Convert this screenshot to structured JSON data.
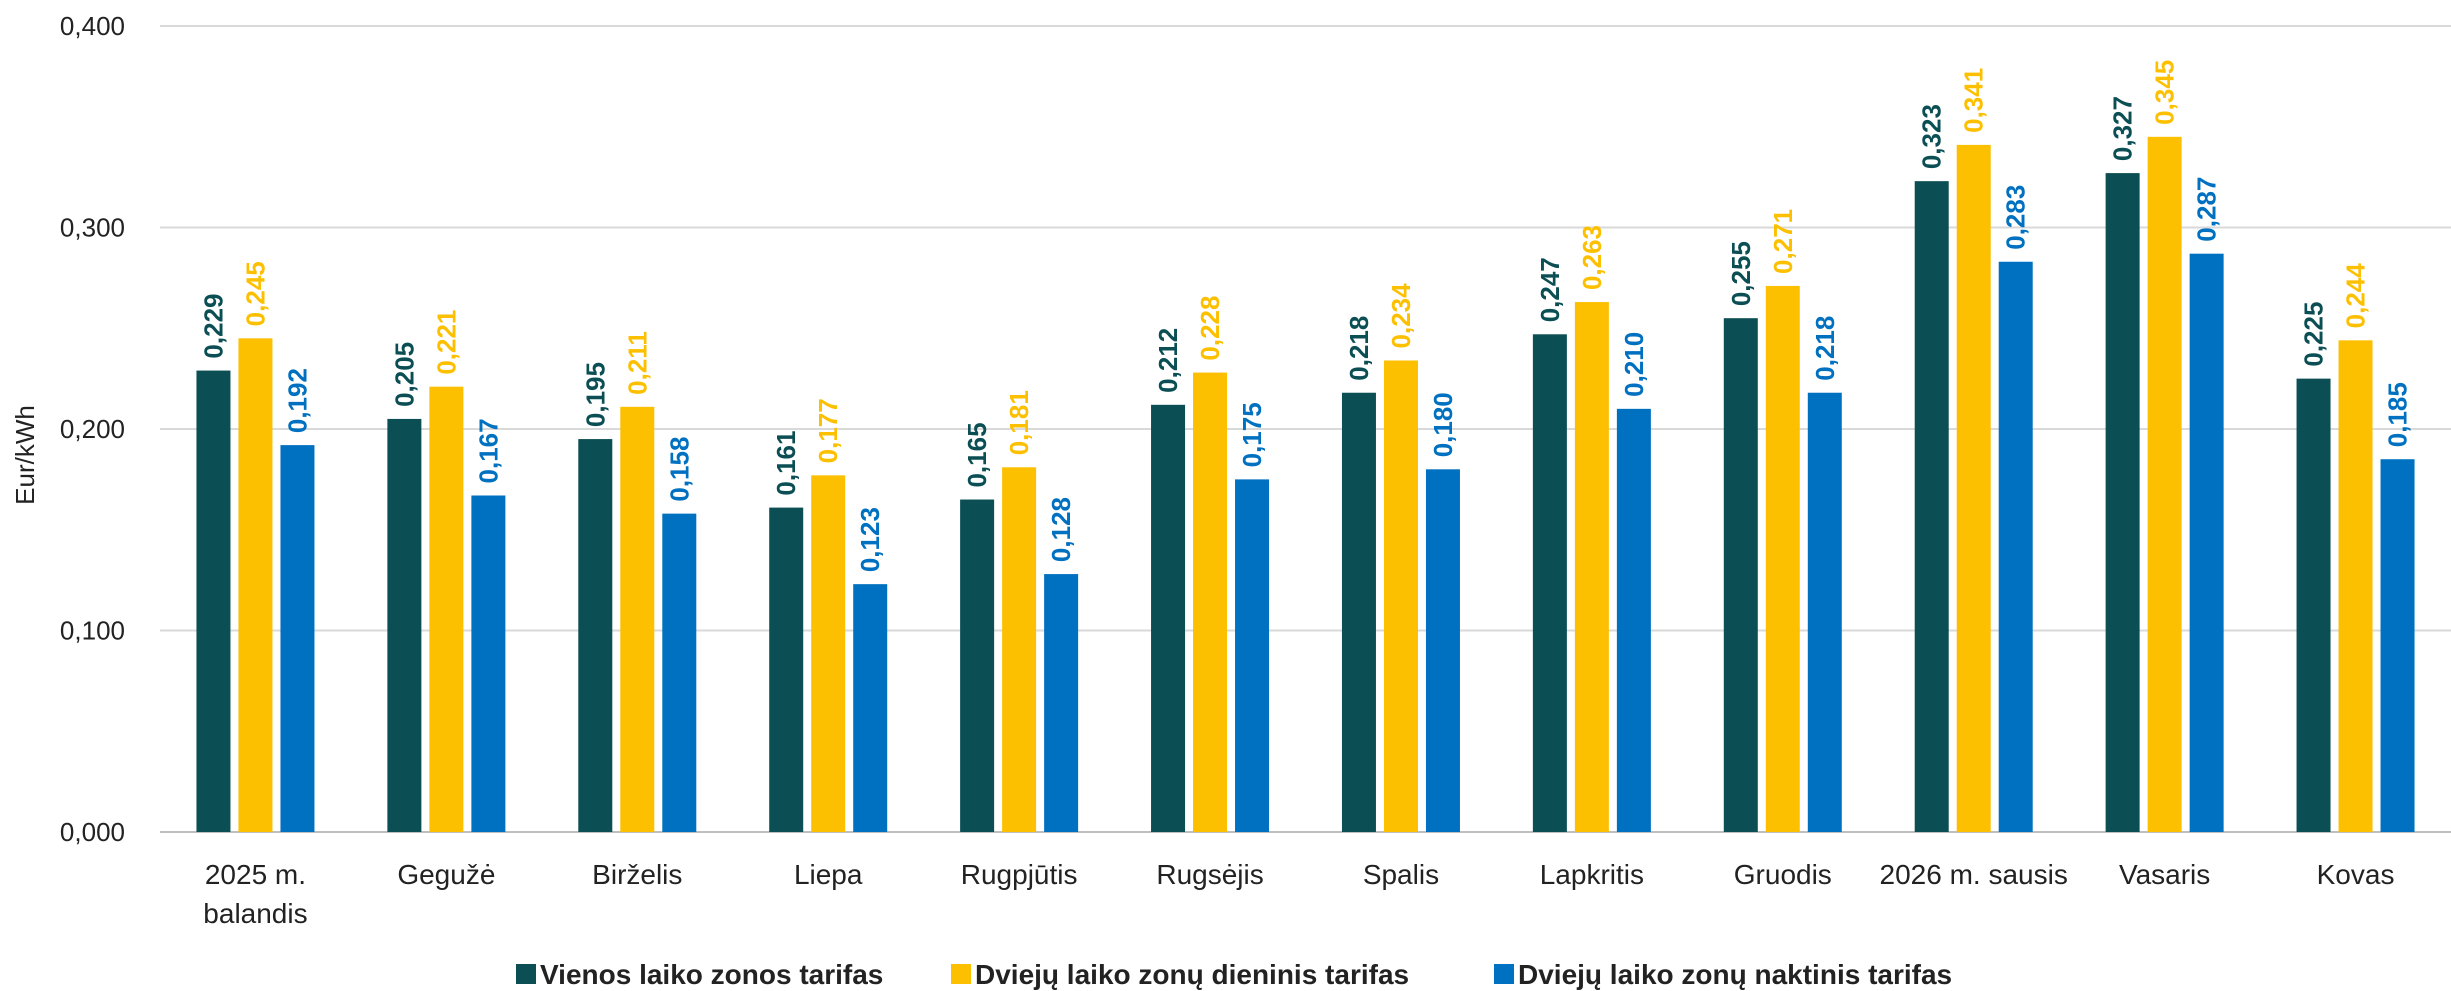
{
  "chart_data": {
    "type": "bar",
    "ylabel": "Eur/kWh",
    "ylim": [
      0,
      0.4
    ],
    "yticks": [
      "0,000",
      "0,100",
      "0,200",
      "0,300",
      "0,400"
    ],
    "yticks_values": [
      0,
      0.1,
      0.2,
      0.3,
      0.4
    ],
    "grid": true,
    "legend_position": "bottom",
    "categories": [
      [
        "2025 m.",
        "balandis"
      ],
      [
        "Gegužė"
      ],
      [
        "Birželis"
      ],
      [
        "Liepa"
      ],
      [
        "Rugpjūtis"
      ],
      [
        "Rugsėjis"
      ],
      [
        "Spalis"
      ],
      [
        "Lapkritis"
      ],
      [
        "Gruodis"
      ],
      [
        "2026 m. sausis"
      ],
      [
        "Vasaris"
      ],
      [
        "Kovas"
      ]
    ],
    "series": [
      {
        "name": "Vienos laiko zonos tarifas",
        "color": "#0b4f55",
        "values": [
          0.229,
          0.205,
          0.195,
          0.161,
          0.165,
          0.212,
          0.218,
          0.247,
          0.255,
          0.323,
          0.327,
          0.225
        ],
        "labels": [
          "0,229",
          "0,205",
          "0,195",
          "0,161",
          "0,165",
          "0,212",
          "0,218",
          "0,247",
          "0,255",
          "0,323",
          "0,327",
          "0,225"
        ]
      },
      {
        "name": "Dviejų laiko zonų dieninis tarifas",
        "color": "#fcc000",
        "values": [
          0.245,
          0.221,
          0.211,
          0.177,
          0.181,
          0.228,
          0.234,
          0.263,
          0.271,
          0.341,
          0.345,
          0.244
        ],
        "labels": [
          "0,245",
          "0,221",
          "0,211",
          "0,177",
          "0,181",
          "0,228",
          "0,234",
          "0,263",
          "0,271",
          "0,341",
          "0,345",
          "0,244"
        ]
      },
      {
        "name": "Dviejų laiko zonų naktinis tarifas",
        "color": "#0070c0",
        "values": [
          0.192,
          0.167,
          0.158,
          0.123,
          0.128,
          0.175,
          0.18,
          0.21,
          0.218,
          0.283,
          0.287,
          0.185
        ],
        "labels": [
          "0,192",
          "0,167",
          "0,158",
          "0,123",
          "0,128",
          "0,175",
          "0,180",
          "0,210",
          "0,218",
          "0,283",
          "0,287",
          "0,185"
        ]
      }
    ]
  }
}
